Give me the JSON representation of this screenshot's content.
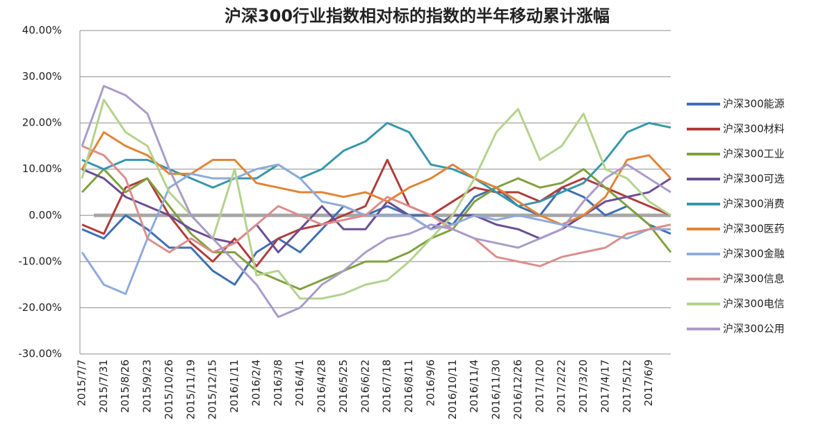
{
  "chart_data": {
    "type": "line",
    "title": "沪深300行业指数相对标的指数的半年移动累计涨幅",
    "categories": [
      "2015/7/7",
      "2015/7/31",
      "2015/8/26",
      "2015/9/23",
      "2015/10/26",
      "2015/11/19",
      "2015/12/15",
      "2016/1/11",
      "2016/2/4",
      "2016/3/8",
      "2016/4/1",
      "2016/4/28",
      "2016/5/25",
      "2016/6/22",
      "2016/7/18",
      "2016/8/11",
      "2016/9/6",
      "2016/10/11",
      "2016/11/4",
      "2016/11/30",
      "2016/12/26",
      "2017/1/20",
      "2017/2/22",
      "2017/3/20",
      "2017/4/17",
      "2017/5/12",
      "2017/6/9",
      null
    ],
    "series": [
      {
        "name": "沪深300能源",
        "color": "#3d6fb3",
        "values": [
          -3,
          -5,
          0,
          -3,
          -7,
          -7,
          -12,
          -15,
          -8,
          -5,
          -8,
          -3,
          2,
          0,
          2,
          0,
          0,
          -2,
          4,
          6,
          2,
          0,
          6,
          4,
          0,
          2,
          -2,
          -4
        ]
      },
      {
        "name": "沪深300材料",
        "color": "#b03c3a",
        "values": [
          -2,
          -4,
          6,
          8,
          0,
          -6,
          -10,
          -5,
          -11,
          -5,
          -3,
          -2,
          0,
          2,
          12,
          2,
          0,
          3,
          6,
          5,
          5,
          3,
          6,
          8,
          6,
          4,
          2,
          0
        ]
      },
      {
        "name": "沪深300工业",
        "color": "#7fa13d",
        "values": [
          5,
          10,
          5,
          8,
          2,
          -4,
          -8,
          -8,
          -12,
          -14,
          -16,
          -14,
          -12,
          -10,
          -10,
          -8,
          -5,
          -3,
          3,
          6,
          8,
          6,
          7,
          10,
          6,
          2,
          -2,
          -8
        ]
      },
      {
        "name": "沪深300可选",
        "color": "#6a4d92",
        "values": [
          10,
          8,
          4,
          2,
          0,
          -3,
          -5,
          -6,
          -2,
          -8,
          -3,
          2,
          -3,
          -3,
          3,
          0,
          -3,
          0,
          0,
          -2,
          -3,
          -5,
          -3,
          0,
          3,
          4,
          5,
          8
        ]
      },
      {
        "name": "沪深300消费",
        "color": "#3696ab",
        "values": [
          12,
          10,
          12,
          12,
          10,
          8,
          6,
          8,
          8,
          11,
          8,
          10,
          14,
          16,
          20,
          18,
          11,
          10,
          8,
          5,
          2,
          3,
          5,
          7,
          12,
          18,
          20,
          19
        ]
      },
      {
        "name": "沪深300医药",
        "color": "#e28334",
        "values": [
          10,
          18,
          15,
          13,
          9,
          9,
          12,
          12,
          7,
          6,
          5,
          5,
          4,
          5,
          3,
          6,
          8,
          11,
          8,
          6,
          3,
          0,
          -2,
          0,
          4,
          12,
          13,
          8
        ]
      },
      {
        "name": "沪深300金融",
        "color": "#8eaadb",
        "values": [
          -8,
          -15,
          -17,
          -5,
          6,
          9,
          8,
          8,
          10,
          11,
          8,
          3,
          2,
          0,
          0,
          0,
          -3,
          -2,
          0,
          -1,
          0,
          -1,
          -2,
          -3,
          -4,
          -5,
          -3,
          -3
        ]
      },
      {
        "name": "沪深300信息",
        "color": "#dc8d8b",
        "values": [
          15,
          13,
          8,
          -5,
          -8,
          -5,
          -8,
          -6,
          -2,
          2,
          0,
          -2,
          -1,
          0,
          4,
          2,
          0,
          -3,
          -5,
          -9,
          -10,
          -11,
          -9,
          -8,
          -7,
          -4,
          -3,
          -2
        ]
      },
      {
        "name": "沪深300电信",
        "color": "#b4d28c",
        "values": [
          8,
          25,
          18,
          15,
          5,
          0,
          -5,
          10,
          -13,
          -12,
          -18,
          -18,
          -17,
          -15,
          -14,
          -10,
          -5,
          0,
          8,
          18,
          23,
          12,
          15,
          22,
          10,
          8,
          3,
          0
        ]
      },
      {
        "name": "沪深300公用",
        "color": "#a99bc9",
        "values": [
          15,
          28,
          26,
          22,
          10,
          0,
          -5,
          -10,
          -15,
          -22,
          -20,
          -15,
          -12,
          -8,
          -5,
          -4,
          -2,
          -3,
          -5,
          -6,
          -7,
          -5,
          -3,
          3,
          8,
          11,
          8,
          5
        ]
      }
    ],
    "ylim": [
      -30,
      40
    ],
    "yticks": [
      {
        "value": -30,
        "label": "-30.00%"
      },
      {
        "value": -20,
        "label": "-20.00%"
      },
      {
        "value": -10,
        "label": "-10.00%"
      },
      {
        "value": 0,
        "label": "0.00%"
      },
      {
        "value": 10,
        "label": "10.00%"
      },
      {
        "value": 20,
        "label": "20.00%"
      },
      {
        "value": 30,
        "label": "30.00%"
      },
      {
        "value": 40,
        "label": "40.00%"
      }
    ],
    "grid": true,
    "legend": "right"
  }
}
